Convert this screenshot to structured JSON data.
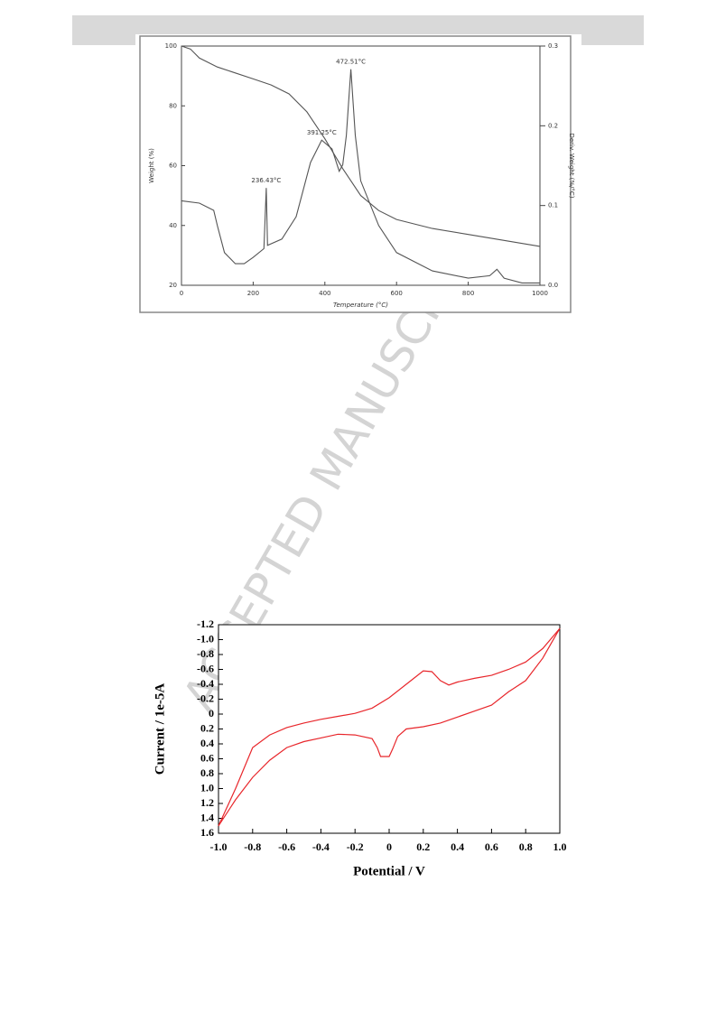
{
  "watermark": "ACCEPTED MANUSCRIPT",
  "chart_data": [
    {
      "type": "line",
      "xlabel": "Temperature (°C)",
      "ylabel": "Weight (%)",
      "y2label": "Deriv. Weight (%/°C)",
      "annotations": [
        {
          "text": "236.43°C",
          "x": 236.43
        },
        {
          "text": "391.25°C",
          "x": 391.25
        },
        {
          "text": "472.51°C",
          "x": 472.51
        }
      ],
      "xlim": [
        0,
        1000
      ],
      "xticks": [
        0,
        200,
        400,
        600,
        800,
        1000
      ],
      "ylim": [
        20,
        100
      ],
      "yticks": [
        20,
        40,
        60,
        80,
        100
      ],
      "y2lim": [
        0,
        0.3
      ],
      "y2ticks": [
        {
          "value": 0,
          "label": "0.0"
        },
        0.1,
        0.2,
        0.3
      ],
      "series": [
        {
          "color": "#555555",
          "x": [
            0,
            25,
            50,
            100,
            150,
            200,
            250,
            300,
            350,
            400,
            450,
            500,
            550,
            600,
            700,
            800,
            900,
            1000
          ],
          "values": [
            100,
            99,
            96,
            93,
            91,
            89,
            87,
            84,
            78,
            69,
            59,
            50,
            45,
            42,
            39,
            37,
            35,
            33
          ]
        },
        {
          "color": "#555555",
          "axis": "y2",
          "x": [
            0,
            50,
            90,
            100,
            120,
            150,
            175,
            200,
            230,
            236.43,
            240,
            280,
            320,
            360,
            391.25,
            420,
            440,
            450,
            460,
            472.51,
            485,
            500,
            550,
            600,
            700,
            800,
            860,
            880,
            900,
            950,
            1000
          ],
          "values": [
            0.106,
            0.103,
            0.094,
            0.075,
            0.041,
            0.027,
            0.027,
            0.035,
            0.046,
            0.122,
            0.05,
            0.058,
            0.086,
            0.154,
            0.182,
            0.171,
            0.143,
            0.151,
            0.188,
            0.271,
            0.188,
            0.131,
            0.075,
            0.041,
            0.018,
            0.009,
            0.012,
            0.02,
            0.009,
            0.003,
            0.003
          ]
        }
      ]
    },
    {
      "type": "line",
      "xlabel": "Potential / V",
      "ylabel": "Current / 1e-5A",
      "xlim": [
        -1,
        1
      ],
      "xticks": [
        {
          "value": -1,
          "label": "-1.0"
        },
        -0.8,
        -0.6,
        -0.4,
        -0.2,
        0,
        0.2,
        0.4,
        0.6,
        0.8,
        {
          "value": 1,
          "label": "1.0"
        }
      ],
      "ylim": [
        -1.2,
        1.6
      ],
      "invert_y": true,
      "yticks": [
        -1.2,
        {
          "value": -1,
          "label": "-1.0"
        },
        -0.8,
        -0.6,
        -0.4,
        -0.2,
        0,
        0.2,
        0.4,
        0.6,
        0.8,
        {
          "value": 1,
          "label": "1.0"
        },
        1.2,
        1.4,
        1.6
      ],
      "series": [
        {
          "color": "#e8262b",
          "x": [
            -1,
            -0.9,
            -0.8,
            -0.7,
            -0.6,
            -0.5,
            -0.4,
            -0.3,
            -0.2,
            -0.1,
            0,
            0.1,
            0.2,
            0.25,
            0.3,
            0.35,
            0.4,
            0.5,
            0.6,
            0.7,
            0.8,
            0.9,
            1
          ],
          "values": [
            1.5,
            1.0,
            0.45,
            0.28,
            0.18,
            0.12,
            0.07,
            0.03,
            -0.01,
            -0.08,
            -0.22,
            -0.4,
            -0.58,
            -0.57,
            -0.45,
            -0.39,
            -0.43,
            -0.48,
            -0.52,
            -0.6,
            -0.7,
            -0.88,
            -1.15
          ]
        },
        {
          "color": "#e8262b",
          "x": [
            1,
            0.95,
            0.9,
            0.8,
            0.7,
            0.6,
            0.5,
            0.4,
            0.3,
            0.2,
            0.1,
            0.05,
            0.02,
            0,
            -0.05,
            -0.07,
            -0.1,
            -0.2,
            -0.3,
            -0.4,
            -0.5,
            -0.6,
            -0.7,
            -0.8,
            -0.9,
            -1
          ],
          "values": [
            -1.15,
            -0.95,
            -0.75,
            -0.45,
            -0.3,
            -0.12,
            -0.04,
            0.04,
            0.12,
            0.17,
            0.2,
            0.3,
            0.47,
            0.57,
            0.57,
            0.45,
            0.33,
            0.28,
            0.27,
            0.32,
            0.37,
            0.45,
            0.62,
            0.85,
            1.15,
            1.5
          ]
        }
      ]
    }
  ]
}
